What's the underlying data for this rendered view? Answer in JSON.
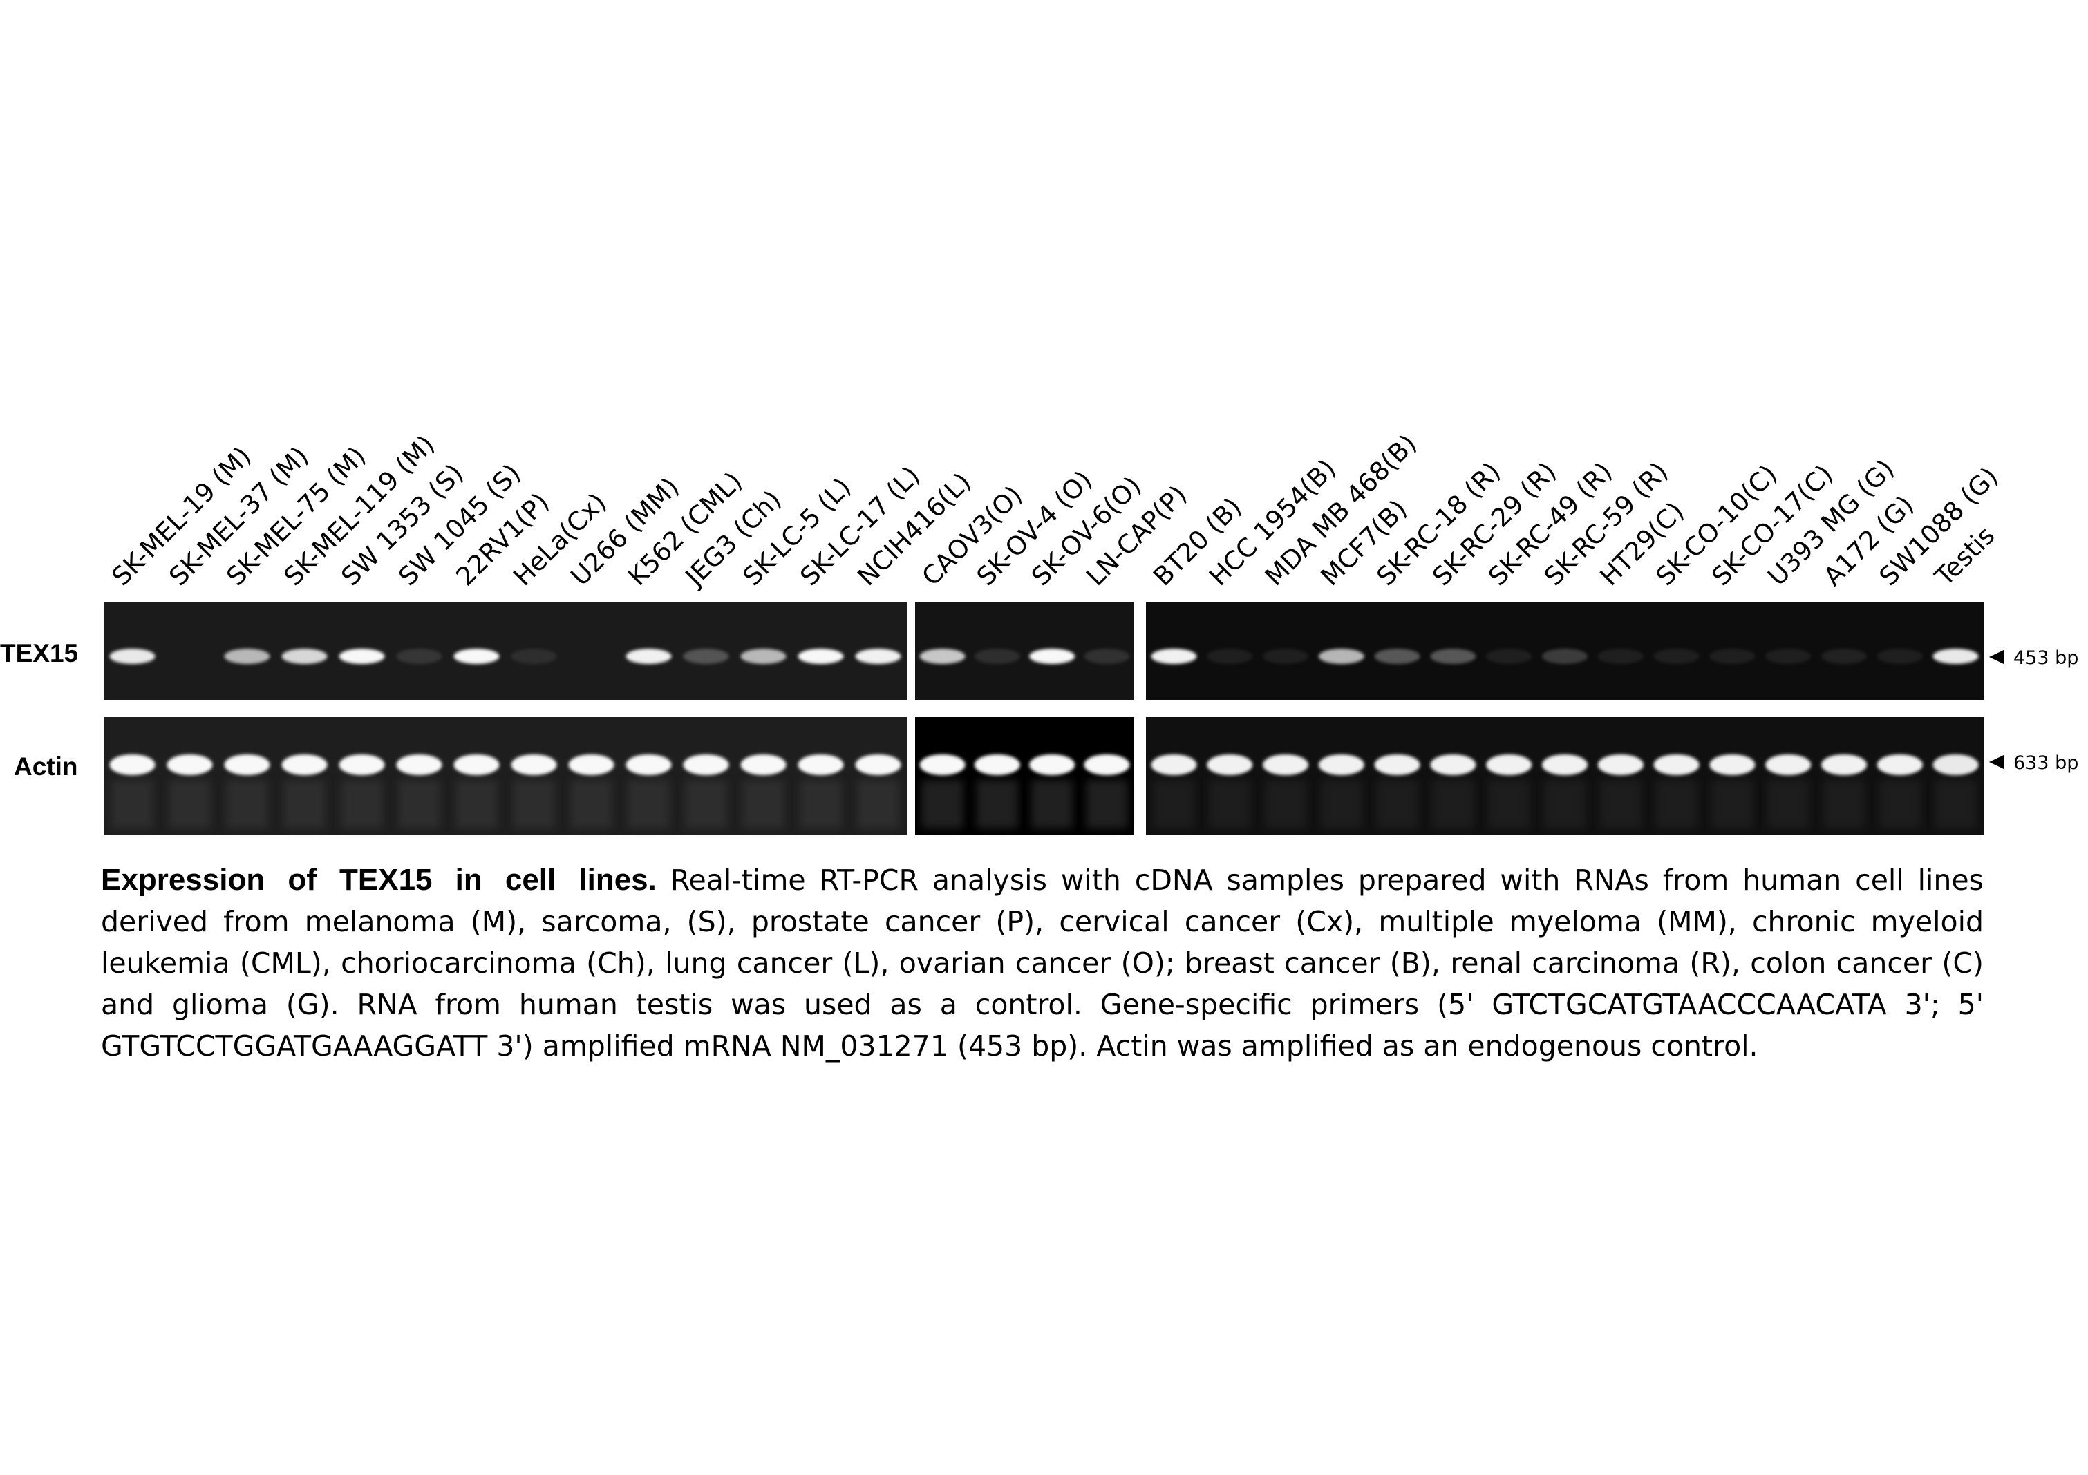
{
  "gel": {
    "lanes": [
      "SK-MEL-19 (M)",
      "SK-MEL-37 (M)",
      "SK-MEL-75 (M)",
      "SK-MEL-119 (M)",
      "SW 1353 (S)",
      "SW 1045 (S)",
      "22RV1(P)",
      "HeLa(Cx)",
      "U266 (MM)",
      "K562 (CML)",
      "JEG3 (Ch)",
      "SK-LC-5 (L)",
      "SK-LC-17 (L)",
      "NCIH416(L)",
      "CAOV3(O)",
      "SK-OV-4 (O)",
      "SK-OV-6(O)",
      "LN-CAP(P)",
      "BT20 (B)",
      "HCC 1954(B)",
      "MDA MB 468(B)",
      "MCF7(B)",
      "SK-RC-18 (R)",
      "SK-RC-29 (R)",
      "SK-RC-49 (R)",
      "SK-RC-59 (R)",
      "HT29(C)",
      "SK-CO-10(C)",
      "SK-CO-17(C)",
      "U393 MG (G)",
      "A172 (G)",
      "SW1088 (G)",
      "Testis"
    ],
    "panels": [
      {
        "lane_count": 14
      },
      {
        "lane_count": 4
      },
      {
        "lane_count": 15
      }
    ],
    "rows": [
      {
        "label": "TEX15",
        "size": "453 bp",
        "band_intensity": [
          0.85,
          0,
          0.7,
          0.8,
          0.95,
          0.12,
          0.95,
          0.06,
          0,
          0.9,
          0.3,
          0.7,
          0.95,
          0.9,
          0.75,
          0.1,
          0.95,
          0.12,
          0.9,
          0.03,
          0.03,
          0.7,
          0.35,
          0.35,
          0.03,
          0.22,
          0.03,
          0.03,
          0.03,
          0.03,
          0.05,
          0.03,
          0.85
        ]
      },
      {
        "label": "Actin",
        "size": "633 bp",
        "band_intensity": [
          0.95,
          0.95,
          0.95,
          0.95,
          0.95,
          0.95,
          0.95,
          0.95,
          0.95,
          0.95,
          0.95,
          0.95,
          0.95,
          0.95,
          0.95,
          0.95,
          0.95,
          0.95,
          0.9,
          0.9,
          0.9,
          0.9,
          0.9,
          0.9,
          0.9,
          0.9,
          0.9,
          0.9,
          0.9,
          0.9,
          0.9,
          0.9,
          0.85
        ]
      }
    ]
  },
  "caption": {
    "title": "Expression of TEX15 in cell lines.",
    "body": "Real-time RT-PCR analysis with cDNA samples prepared with RNAs from human cell lines derived from melanoma (M), sarcoma, (S), prostate cancer (P), cervical cancer (Cx), multiple myeloma (MM), chronic myeloid leukemia (CML), choriocarcinoma (Ch), lung cancer (L), ovarian cancer (O); breast cancer (B), renal carcinoma (R), colon cancer (C) and glioma (G). RNA from human testis was used as a control. Gene-specific primers (5' GTCTGCATGTAACCCAACATA 3'; 5' GTGTCCTGGATGAAAGGATT 3') amplified mRNA NM_031271 (453 bp). Actin was amplified as an endogenous control."
  }
}
